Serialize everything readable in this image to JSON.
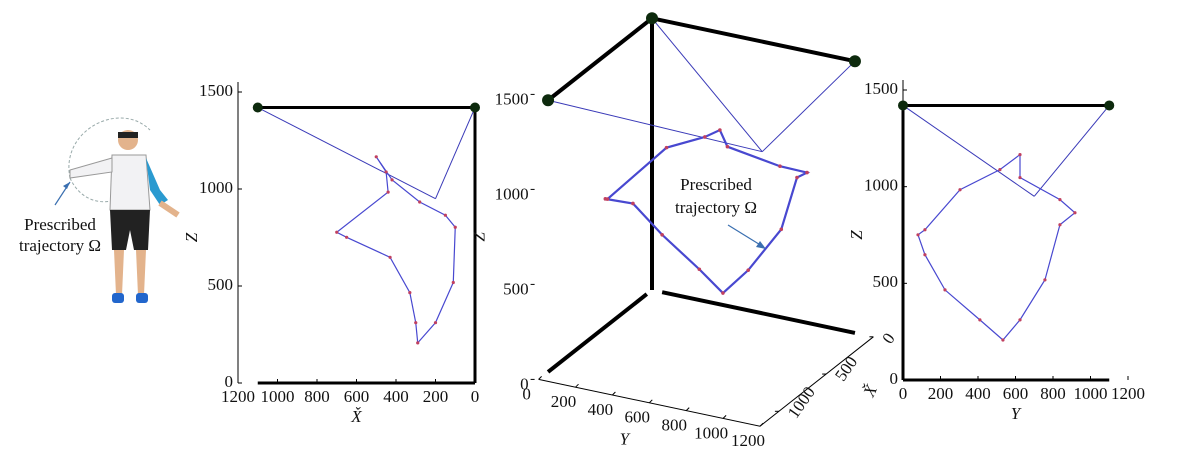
{
  "illustration": {
    "label": [
      "Prescribed",
      "trajectory Ω"
    ]
  },
  "chart_data": [
    {
      "type": "line",
      "xlabel": "X̌",
      "ylabel": "Z",
      "xlim": [
        1200,
        0
      ],
      "ylim": [
        0,
        1500
      ],
      "xticks": [
        1200,
        1000,
        800,
        600,
        400,
        200,
        0
      ],
      "yticks": [
        0,
        500,
        1000,
        1500
      ],
      "trajectory": {
        "color": "#4848d0",
        "x": [
          500,
          420,
          280,
          150,
          100,
          110,
          200,
          290,
          300,
          330,
          430,
          650,
          700,
          440,
          450
        ],
        "y": [
          1166,
          1047,
          933,
          865,
          803,
          518,
          311,
          207,
          311,
          466,
          648,
          751,
          777,
          984,
          1088
        ]
      },
      "anchors": {
        "x": [
          1100,
          0
        ],
        "y": [
          1420,
          1420
        ]
      },
      "end_effector": {
        "x": 200,
        "y": 950
      }
    },
    {
      "type": "line3d",
      "xlabel": "X̌",
      "ylabel": "Y",
      "zlabel": "Z",
      "xlim": [
        0,
        1200
      ],
      "ylim": [
        0,
        1200
      ],
      "zlim": [
        0,
        1500
      ],
      "xticks": [
        0,
        500,
        1000
      ],
      "yticks": [
        0,
        200,
        400,
        600,
        800,
        1000,
        1200
      ],
      "zticks": [
        0,
        500,
        1000,
        1500
      ],
      "annotation": [
        "Prescribed",
        "trajectory Ω"
      ],
      "trajectory": {
        "color": "#4848d0",
        "x": [
          500,
          420,
          280,
          150,
          100,
          110,
          200,
          290,
          300,
          330,
          430,
          650,
          700,
          440,
          450
        ],
        "y": [
          624,
          624,
          837,
          917,
          837,
          757,
          624,
          533,
          410,
          224,
          117,
          80,
          117,
          304,
          517
        ],
        "z": [
          1166,
          1047,
          933,
          865,
          803,
          518,
          311,
          207,
          311,
          466,
          648,
          751,
          777,
          984,
          1088
        ]
      },
      "anchors": {
        "x": [
          1100,
          0,
          0
        ],
        "y": [
          0,
          0,
          1100
        ],
        "z": [
          1430,
          1430,
          1430
        ]
      },
      "end_effector": {
        "x": 200,
        "y": 700,
        "z": 950
      }
    },
    {
      "type": "line",
      "xlabel": "Y",
      "ylabel": "Z",
      "xlim": [
        0,
        1200
      ],
      "ylim": [
        0,
        1500
      ],
      "xticks": [
        0,
        200,
        400,
        600,
        800,
        1000,
        1200
      ],
      "yticks": [
        0,
        500,
        1000,
        1500
      ],
      "trajectory": {
        "color": "#4848d0",
        "x": [
          624,
          624,
          837,
          917,
          837,
          757,
          624,
          533,
          410,
          224,
          117,
          80,
          117,
          304,
          517
        ],
        "y": [
          1166,
          1047,
          933,
          865,
          803,
          518,
          311,
          207,
          311,
          466,
          648,
          751,
          777,
          984,
          1088
        ]
      },
      "anchors": {
        "x": [
          0,
          1100
        ],
        "y": [
          1420,
          1420
        ]
      },
      "end_effector": {
        "x": 700,
        "y": 950
      }
    }
  ]
}
